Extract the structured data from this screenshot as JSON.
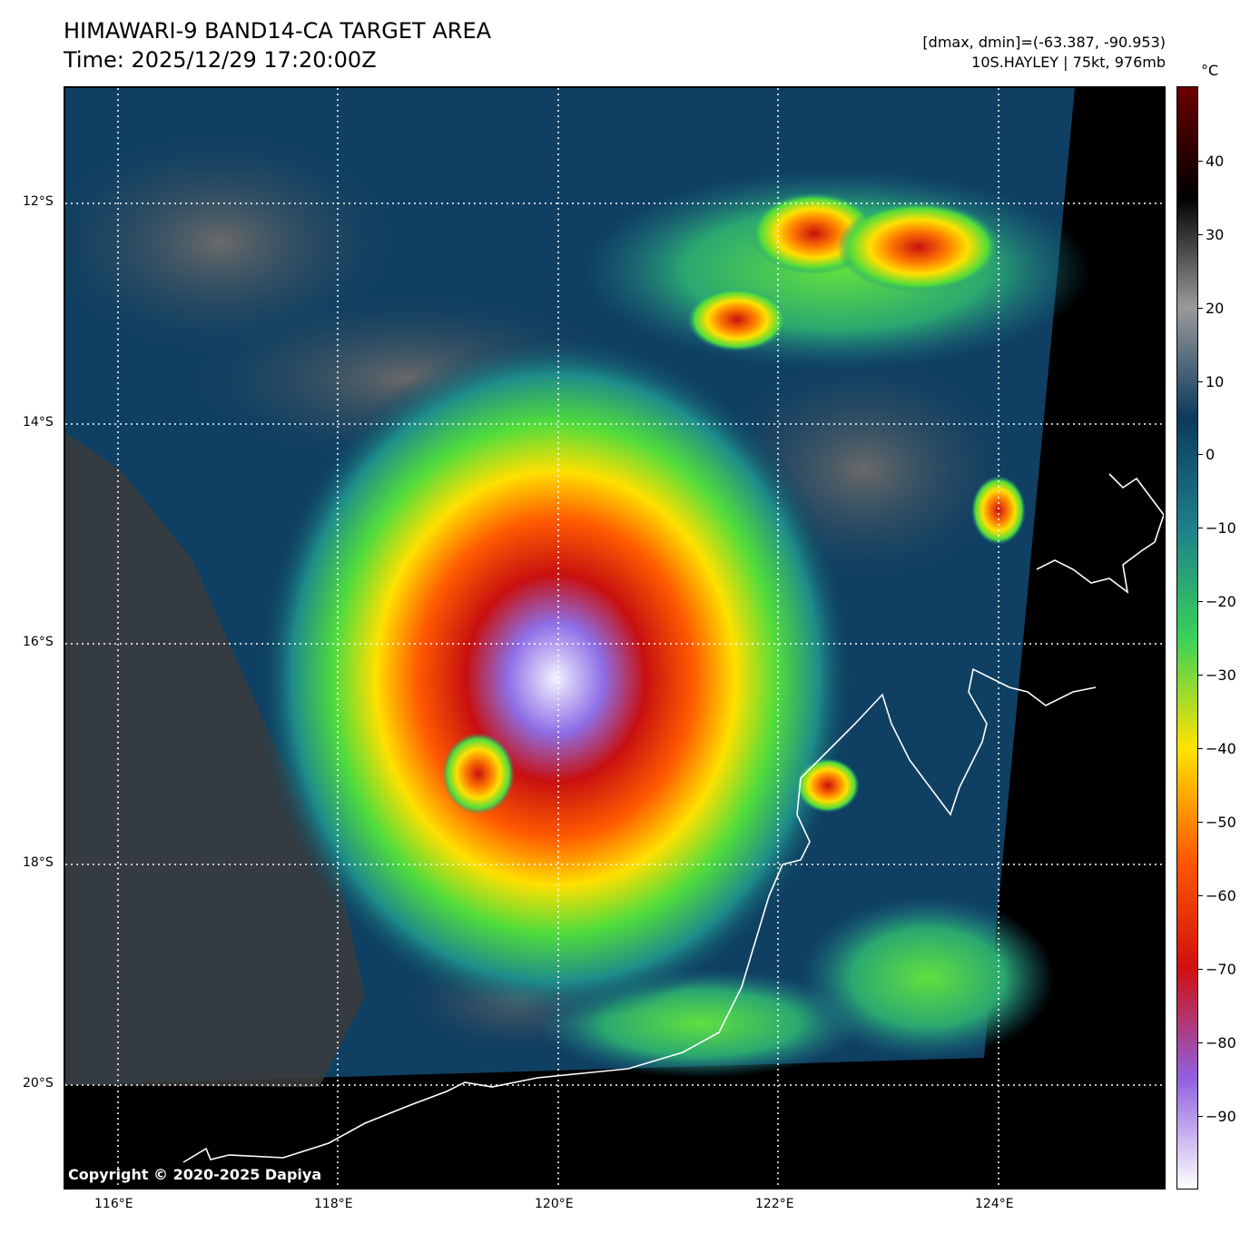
{
  "header": {
    "title_line1": "HIMAWARI-9 BAND14-CA TARGET AREA",
    "title_line2": "Time: 2025/12/29 17:20:00Z",
    "range": "[dmax, dmin]=(-63.387, -90.953)",
    "storm": "10S.HAYLEY | 75kt, 976mb"
  },
  "axes": {
    "lat_labels": [
      "12°S",
      "14°S",
      "16°S",
      "18°S",
      "20°S"
    ],
    "lon_labels": [
      "116°E",
      "118°E",
      "120°E",
      "122°E",
      "124°E"
    ]
  },
  "colorbar": {
    "unit": "°C",
    "ticks": [
      "40",
      "30",
      "20",
      "10",
      "0",
      "−10",
      "−20",
      "−30",
      "−40",
      "−50",
      "−60",
      "−70",
      "−80",
      "−90"
    ],
    "colors": [
      "#6b0000",
      "#000000",
      "#9a9a9a",
      "#0c3a5c",
      "#1e7f8c",
      "#39d15a",
      "#ffe300",
      "#ff5a00",
      "#d01010",
      "#9060e0",
      "#ffffff"
    ]
  },
  "copyright": "Copyright © 2020-2025 Dapiya"
}
